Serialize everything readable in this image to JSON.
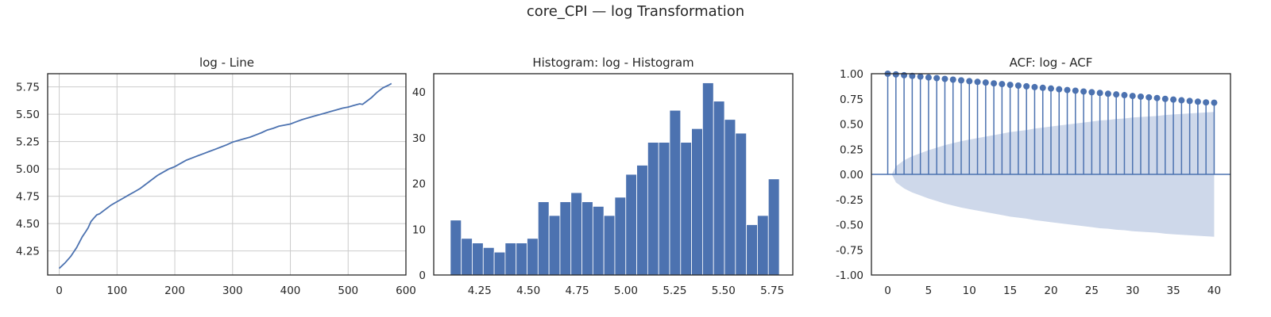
{
  "suptitle": "core_CPI — log Transformation",
  "colors": {
    "series": "#4c72b0",
    "confint": "#ced8ea",
    "axes": "#262626",
    "grid": "#cccccc"
  },
  "chart_data": [
    {
      "id": "line",
      "type": "line",
      "title": "log - Line",
      "xlim": [
        -20,
        600
      ],
      "ylim": [
        4.03,
        5.87
      ],
      "xticks": [
        0,
        100,
        200,
        300,
        400,
        500,
        600
      ],
      "yticks": [
        4.25,
        4.5,
        4.75,
        5.0,
        5.25,
        5.5,
        5.75
      ],
      "ytick_format": 2,
      "grid": true,
      "series": [
        {
          "x": [
            0,
            10,
            20,
            30,
            40,
            45,
            50,
            55,
            60,
            65,
            70,
            80,
            90,
            100,
            110,
            120,
            130,
            140,
            150,
            160,
            170,
            180,
            190,
            200,
            210,
            220,
            230,
            240,
            250,
            260,
            270,
            280,
            290,
            300,
            310,
            320,
            330,
            340,
            350,
            360,
            370,
            380,
            390,
            400,
            410,
            420,
            430,
            440,
            450,
            460,
            470,
            480,
            490,
            500,
            510,
            520,
            525,
            530,
            540,
            550,
            560,
            570,
            575
          ],
          "y": [
            4.09,
            4.14,
            4.2,
            4.28,
            4.38,
            4.42,
            4.46,
            4.52,
            4.55,
            4.58,
            4.59,
            4.63,
            4.67,
            4.7,
            4.73,
            4.76,
            4.79,
            4.82,
            4.86,
            4.9,
            4.94,
            4.97,
            5.0,
            5.02,
            5.05,
            5.08,
            5.1,
            5.12,
            5.14,
            5.16,
            5.18,
            5.2,
            5.22,
            5.245,
            5.26,
            5.275,
            5.29,
            5.31,
            5.33,
            5.355,
            5.37,
            5.39,
            5.4,
            5.41,
            5.43,
            5.45,
            5.465,
            5.48,
            5.495,
            5.51,
            5.525,
            5.54,
            5.555,
            5.565,
            5.58,
            5.595,
            5.59,
            5.61,
            5.65,
            5.7,
            5.74,
            5.765,
            5.78
          ]
        }
      ]
    },
    {
      "id": "hist",
      "type": "bar",
      "title": "Histogram: log - Histogram",
      "xlim": [
        4.015,
        5.855
      ],
      "ylim": [
        0,
        44
      ],
      "xticks": [
        4.25,
        4.5,
        4.75,
        5.0,
        5.25,
        5.5,
        5.75
      ],
      "yticks": [
        0,
        10,
        20,
        30,
        40
      ],
      "xtick_format": 2,
      "grid": false,
      "bin_start": 4.1,
      "bin_width": 0.0562,
      "values": [
        12,
        8,
        7,
        6,
        5,
        7,
        7,
        8,
        16,
        13,
        16,
        18,
        16,
        15,
        13,
        17,
        22,
        24,
        29,
        29,
        36,
        29,
        32,
        42,
        38,
        34,
        31,
        11,
        13,
        21
      ]
    },
    {
      "id": "acf",
      "type": "stem",
      "title": "ACF: log - ACF",
      "xlim": [
        -2,
        42
      ],
      "ylim": [
        -1.0,
        1.0
      ],
      "xticks": [
        0,
        5,
        10,
        15,
        20,
        25,
        30,
        35,
        40
      ],
      "yticks": [
        -1.0,
        -0.75,
        -0.5,
        -0.25,
        0.0,
        0.25,
        0.5,
        0.75,
        1.0
      ],
      "ytick_format": 2,
      "grid": false,
      "lags": [
        0,
        1,
        2,
        3,
        4,
        5,
        6,
        7,
        8,
        9,
        10,
        11,
        12,
        13,
        14,
        15,
        16,
        17,
        18,
        19,
        20,
        21,
        22,
        23,
        24,
        25,
        26,
        27,
        28,
        29,
        30,
        31,
        32,
        33,
        34,
        35,
        36,
        37,
        38,
        39,
        40
      ],
      "values": [
        1.0,
        0.993,
        0.985,
        0.978,
        0.971,
        0.963,
        0.956,
        0.948,
        0.941,
        0.934,
        0.926,
        0.919,
        0.912,
        0.904,
        0.897,
        0.889,
        0.882,
        0.875,
        0.867,
        0.86,
        0.853,
        0.845,
        0.838,
        0.831,
        0.823,
        0.816,
        0.809,
        0.801,
        0.794,
        0.787,
        0.779,
        0.772,
        0.765,
        0.758,
        0.75,
        0.743,
        0.736,
        0.729,
        0.722,
        0.715,
        0.712
      ],
      "confint_upper": [
        0.0,
        0.08,
        0.14,
        0.18,
        0.21,
        0.24,
        0.265,
        0.29,
        0.31,
        0.33,
        0.345,
        0.36,
        0.375,
        0.39,
        0.405,
        0.42,
        0.43,
        0.44,
        0.455,
        0.465,
        0.475,
        0.485,
        0.495,
        0.505,
        0.515,
        0.525,
        0.535,
        0.54,
        0.55,
        0.555,
        0.565,
        0.57,
        0.575,
        0.58,
        0.59,
        0.595,
        0.6,
        0.605,
        0.61,
        0.615,
        0.62
      ]
    }
  ]
}
